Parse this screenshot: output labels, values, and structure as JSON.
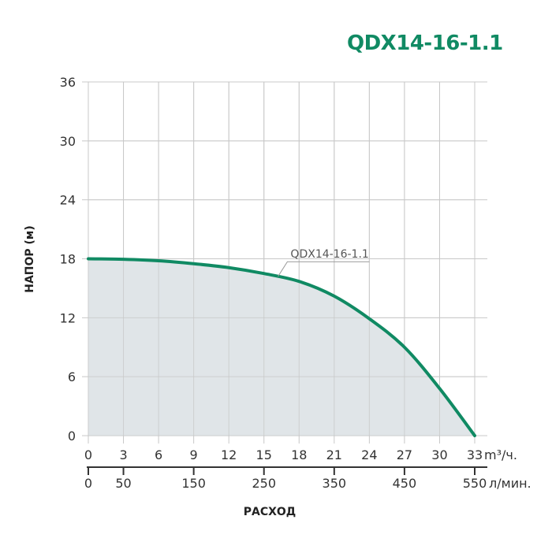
{
  "chart_data": {
    "type": "area",
    "title": "QDX14-16-1.1",
    "xlabel": "РАСХОД",
    "ylabel": "НАПОР (м)",
    "x_unit": "m³/ч.",
    "x2_unit": "л/мин.",
    "xlim": [
      0,
      33
    ],
    "ylim": [
      0,
      36
    ],
    "x_ticks": [
      0,
      3,
      6,
      9,
      12,
      15,
      18,
      21,
      24,
      27,
      30,
      33
    ],
    "y_ticks": [
      0,
      6,
      12,
      18,
      24,
      30,
      36
    ],
    "x2_ticks": [
      0,
      50,
      150,
      250,
      350,
      450,
      550
    ],
    "grid": true,
    "series": [
      {
        "name": "QDX14-16-1.1",
        "x": [
          0,
          3,
          6,
          9,
          12,
          15,
          18,
          21,
          24,
          27,
          30,
          33
        ],
        "y": [
          18,
          17.95,
          17.8,
          17.5,
          17.1,
          16.5,
          15.7,
          14.2,
          11.9,
          9.0,
          4.8,
          0
        ]
      }
    ],
    "colors": {
      "line": "#108a63",
      "fill": "#dde2e6",
      "grid": "#c8c8c8",
      "title": "#108a63"
    }
  }
}
